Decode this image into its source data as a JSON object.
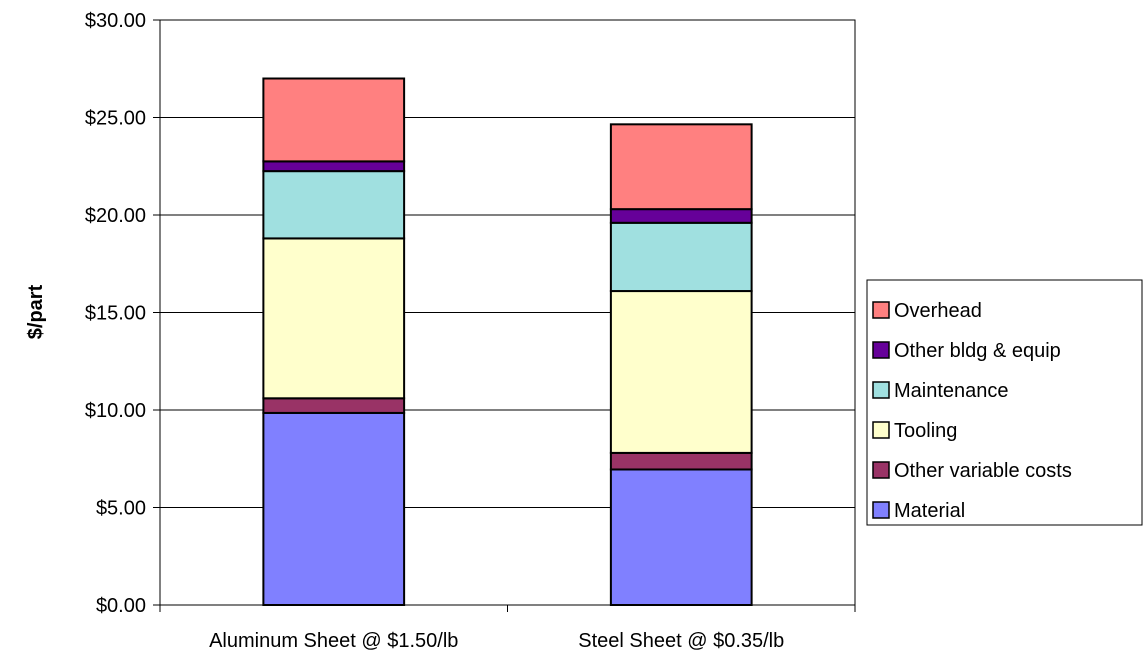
{
  "chart_data": {
    "type": "bar",
    "stacked": true,
    "categories": [
      "Aluminum Sheet @ $1.50/lb",
      "Steel Sheet @ $0.35/lb"
    ],
    "series": [
      {
        "name": "Material",
        "color": "#8080ff",
        "values": [
          9.85,
          6.95
        ]
      },
      {
        "name": "Other variable costs",
        "color": "#993366",
        "values": [
          0.75,
          0.85
        ]
      },
      {
        "name": "Tooling",
        "color": "#ffffcc",
        "values": [
          8.2,
          8.3
        ]
      },
      {
        "name": "Maintenance",
        "color": "#a0e0e0",
        "values": [
          3.45,
          3.5
        ]
      },
      {
        "name": "Other bldg & equip",
        "color": "#660099",
        "values": [
          0.5,
          0.7
        ]
      },
      {
        "name": "Overhead",
        "color": "#ff8080",
        "values": [
          4.25,
          4.35
        ]
      }
    ],
    "legend_order": [
      "Overhead",
      "Other bldg & equip",
      "Maintenance",
      "Tooling",
      "Other variable costs",
      "Material"
    ],
    "ylabel": "$/part",
    "ylim": [
      0,
      30
    ],
    "yticks": [
      0,
      5,
      10,
      15,
      20,
      25,
      30
    ],
    "ytick_labels": [
      "$0.00",
      "$5.00",
      "$10.00",
      "$15.00",
      "$20.00",
      "$25.00",
      "$30.00"
    ],
    "grid": true,
    "legend_position": "right"
  }
}
